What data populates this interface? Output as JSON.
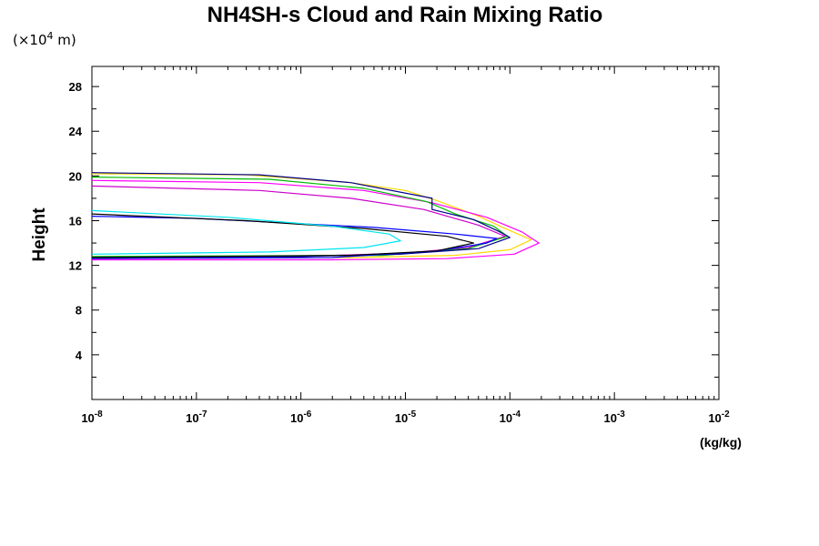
{
  "chart_data": {
    "type": "line",
    "title": "NH4SH-s Cloud and Rain Mixing Ratio",
    "y_unit_prefix": "(×10",
    "y_unit_exponent": "4",
    "y_unit_suffix": " m)",
    "ylabel": "Height",
    "xlabel": "(kg/kg)",
    "xscale": "log",
    "xlim": [
      1e-08,
      0.01
    ],
    "ylim": [
      0,
      29.8
    ],
    "grid": false,
    "x_ticks": [
      {
        "base": "10",
        "exp": "-8",
        "value": 1e-08
      },
      {
        "base": "10",
        "exp": "-7",
        "value": 1e-07
      },
      {
        "base": "10",
        "exp": "-6",
        "value": 1e-06
      },
      {
        "base": "10",
        "exp": "-5",
        "value": 1e-05
      },
      {
        "base": "10",
        "exp": "-4",
        "value": 0.0001
      },
      {
        "base": "10",
        "exp": "-3",
        "value": 0.001
      },
      {
        "base": "10",
        "exp": "-2",
        "value": 0.01
      }
    ],
    "y_ticks": [
      "4",
      "8",
      "12",
      "16",
      "20",
      "24",
      "28"
    ],
    "series": [
      {
        "color": "#ffd700",
        "points": [
          [
            1e-08,
            20.2
          ],
          [
            3e-07,
            20.1
          ],
          [
            3e-06,
            19.4
          ],
          [
            1e-05,
            18.7
          ],
          [
            2e-05,
            17.8
          ],
          [
            5e-05,
            16.4
          ],
          [
            9e-05,
            15.3
          ],
          [
            0.00016,
            14.3
          ],
          [
            0.0001,
            13.4
          ],
          [
            3e-05,
            12.9
          ],
          [
            3e-06,
            12.7
          ],
          [
            1e-08,
            12.6
          ]
        ]
      },
      {
        "color": "#ff00ff",
        "points": [
          [
            1e-08,
            19.6
          ],
          [
            4e-07,
            19.4
          ],
          [
            4e-06,
            18.7
          ],
          [
            1.8e-05,
            17.6
          ],
          [
            6e-05,
            16.3
          ],
          [
            0.00013,
            15.0
          ],
          [
            0.00019,
            14.0
          ],
          [
            0.00011,
            13.0
          ],
          [
            2.5e-05,
            12.6
          ],
          [
            2e-06,
            12.5
          ],
          [
            1e-08,
            12.5
          ]
        ]
      },
      {
        "color": "#cc00cc",
        "points": [
          [
            1e-08,
            19.1
          ],
          [
            4e-07,
            18.7
          ],
          [
            3e-06,
            18.0
          ],
          [
            1.5e-05,
            17.0
          ],
          [
            5e-05,
            15.6
          ],
          [
            9e-05,
            14.6
          ],
          [
            4e-05,
            13.6
          ],
          [
            1e-05,
            13.1
          ],
          [
            1e-06,
            12.8
          ],
          [
            1e-08,
            12.7
          ]
        ]
      },
      {
        "color": "#00bb00",
        "points": [
          [
            1e-08,
            19.9
          ],
          [
            5e-07,
            19.7
          ],
          [
            4e-06,
            18.9
          ],
          [
            1.6e-05,
            17.7
          ],
          [
            3e-05,
            16.6
          ],
          [
            7e-05,
            15.5
          ],
          [
            9.5e-05,
            14.6
          ],
          [
            4e-05,
            13.5
          ],
          [
            6e-06,
            12.9
          ],
          [
            1e-08,
            12.8
          ]
        ]
      },
      {
        "color": "#00008b",
        "points": [
          [
            1e-08,
            20.3
          ],
          [
            4e-07,
            20.1
          ],
          [
            3e-06,
            19.4
          ],
          [
            1.8e-05,
            18.0
          ],
          [
            1.8e-05,
            17.0
          ],
          [
            4.5e-05,
            16.1
          ],
          [
            8e-05,
            15.0
          ],
          [
            0.0001,
            14.5
          ],
          [
            5e-05,
            13.5
          ],
          [
            9e-06,
            13.0
          ],
          [
            1e-06,
            12.8
          ],
          [
            1e-08,
            12.7
          ]
        ]
      },
      {
        "color": "#0000ff",
        "points": [
          [
            1e-08,
            12.6
          ],
          [
            2e-06,
            12.7
          ],
          [
            2e-05,
            13.3
          ],
          [
            6e-05,
            14.0
          ],
          [
            7.5e-05,
            14.4
          ],
          [
            3e-05,
            14.8
          ],
          [
            5e-06,
            15.4
          ],
          [
            1e-07,
            16.2
          ],
          [
            1e-08,
            16.4
          ]
        ]
      },
      {
        "color": "#000000",
        "points": [
          [
            1e-08,
            16.6
          ],
          [
            3e-07,
            16.0
          ],
          [
            4e-06,
            15.3
          ],
          [
            2.5e-05,
            14.6
          ],
          [
            4.5e-05,
            14.0
          ],
          [
            2e-05,
            13.3
          ],
          [
            3e-06,
            12.9
          ],
          [
            1e-08,
            12.7
          ]
        ]
      },
      {
        "color": "#00e5ee",
        "points": [
          [
            1e-08,
            16.9
          ],
          [
            2e-07,
            16.3
          ],
          [
            2e-06,
            15.5
          ],
          [
            7e-06,
            14.8
          ],
          [
            9e-06,
            14.2
          ],
          [
            4e-06,
            13.6
          ],
          [
            5e-07,
            13.2
          ],
          [
            1e-08,
            13.0
          ]
        ]
      }
    ]
  }
}
